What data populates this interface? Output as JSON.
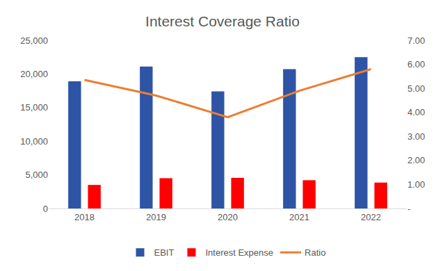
{
  "chart_data": {
    "type": "bar",
    "title": "Interest Coverage Ratio",
    "categories": [
      "2018",
      "2019",
      "2020",
      "2021",
      "2022"
    ],
    "series": [
      {
        "name": "EBIT",
        "type": "bar",
        "color": "#2E54A5",
        "values": [
          18900,
          21100,
          17400,
          20700,
          22500
        ]
      },
      {
        "name": "Interest Expense",
        "type": "bar",
        "color": "#FF0000",
        "values": [
          3500,
          4500,
          4550,
          4200,
          3850
        ]
      },
      {
        "name": "Ratio",
        "type": "line",
        "axis": "y2",
        "color": "#ED7D31",
        "values": [
          5.35,
          4.7,
          3.8,
          4.9,
          5.8
        ]
      }
    ],
    "ylim": [
      0,
      25000
    ],
    "yticks": [
      0,
      {
        "value": 5000,
        "label": "5,000"
      },
      {
        "value": 10000,
        "label": "10,000"
      },
      {
        "value": 15000,
        "label": "15,000"
      },
      {
        "value": 20000,
        "label": "20,000"
      },
      {
        "value": 25000,
        "label": "25,000"
      }
    ],
    "y2lim": [
      0,
      7
    ],
    "y2ticks": [
      {
        "value": 0,
        "label": "-"
      },
      {
        "value": 1,
        "label": "1.00"
      },
      {
        "value": 2,
        "label": "2.00"
      },
      {
        "value": 3,
        "label": "3.00"
      },
      {
        "value": 4,
        "label": "4.00"
      },
      {
        "value": 5,
        "label": "5.00"
      },
      {
        "value": 6,
        "label": "6.00"
      },
      {
        "value": 7,
        "label": "7.00"
      }
    ],
    "grid": false,
    "legend": "bottom"
  }
}
